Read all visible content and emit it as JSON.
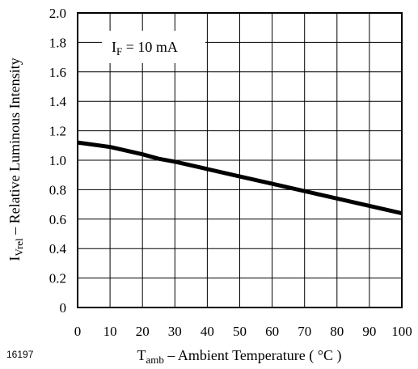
{
  "chart_data": {
    "type": "line",
    "x_axis": {
      "label_main": "T",
      "label_sub": "amb",
      "label_rest": " – Ambient Temperature ( °C )",
      "range": [
        0,
        100
      ],
      "ticks": [
        0,
        10,
        20,
        30,
        40,
        50,
        60,
        70,
        80,
        90,
        100
      ],
      "tick_labels": [
        "0",
        "10",
        "20",
        "30",
        "40",
        "50",
        "60",
        "70",
        "80",
        "90",
        "100"
      ]
    },
    "y_axis": {
      "label_main": "I",
      "label_sub": "Vrel",
      "label_rest": " – Relative Luminous Intensity",
      "range": [
        0,
        2.0
      ],
      "ticks": [
        0,
        0.2,
        0.4,
        0.6,
        0.8,
        1.0,
        1.2,
        1.4,
        1.6,
        1.8,
        2.0
      ],
      "tick_labels": [
        "0",
        "0.2",
        "0.4",
        "0.6",
        "0.8",
        "1.0",
        "1.2",
        "1.4",
        "1.6",
        "1.8",
        "2.0"
      ]
    },
    "grid": true,
    "annotation": {
      "main": "I",
      "sub": "F",
      "rest": " = 10 mA",
      "placement": "top-left"
    },
    "series": [
      {
        "x": [
          0,
          10,
          20,
          25,
          30,
          40,
          50,
          60,
          70,
          80,
          90,
          100
        ],
        "y": [
          1.12,
          1.09,
          1.04,
          1.01,
          0.99,
          0.94,
          0.89,
          0.84,
          0.79,
          0.74,
          0.69,
          0.64
        ]
      }
    ]
  },
  "figure_number": "16197"
}
